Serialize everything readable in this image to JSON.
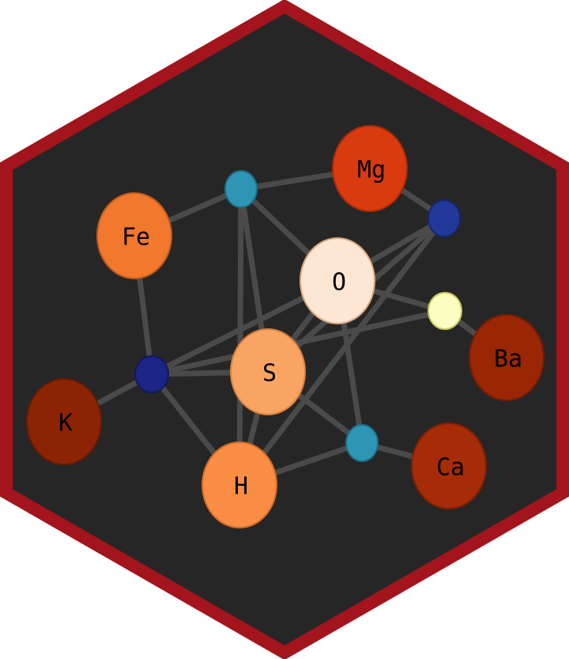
{
  "colors": {
    "background": "#ffffff",
    "hex_border": "#a3141c",
    "hex_fill": "#262626",
    "edge": "#4a4a4a"
  },
  "nodes": [
    {
      "id": "Fe",
      "label": "Fe",
      "fill": "#f2782e",
      "stroke": "#c45a1c"
    },
    {
      "id": "Mg",
      "label": "Mg",
      "fill": "#d93a0e",
      "stroke": "#a82a08"
    },
    {
      "id": "O",
      "label": "O",
      "fill": "#fde6d4",
      "stroke": "#d9a880"
    },
    {
      "id": "S",
      "label": "S",
      "fill": "#f9a462",
      "stroke": "#d9803e"
    },
    {
      "id": "H",
      "label": "H",
      "fill": "#fb8d44",
      "stroke": "#d36b24"
    },
    {
      "id": "K",
      "label": "K",
      "fill": "#8c2404",
      "stroke": "#6a1a02"
    },
    {
      "id": "Ba",
      "label": "Ba",
      "fill": "#9a2605",
      "stroke": "#751c03"
    },
    {
      "id": "Ca",
      "label": "Ca",
      "fill": "#a62b07",
      "stroke": "#7d1f04"
    },
    {
      "id": "teal1",
      "label": "",
      "fill": "#2e96b4",
      "stroke": "#1e6f88"
    },
    {
      "id": "teal2",
      "label": "",
      "fill": "#2e96b4",
      "stroke": "#1e6f88"
    },
    {
      "id": "navy1",
      "label": "",
      "fill": "#23399a",
      "stroke": "#162670"
    },
    {
      "id": "navy2",
      "label": "",
      "fill": "#1c2486",
      "stroke": "#111860"
    },
    {
      "id": "yellow1",
      "label": "",
      "fill": "#fdffc2",
      "stroke": "#c8c860"
    }
  ],
  "edges": [
    [
      "Fe",
      "teal1"
    ],
    [
      "teal1",
      "Mg"
    ],
    [
      "Mg",
      "navy1"
    ],
    [
      "teal1",
      "O"
    ],
    [
      "teal1",
      "S"
    ],
    [
      "teal1",
      "H"
    ],
    [
      "Fe",
      "navy2"
    ],
    [
      "K",
      "navy2"
    ],
    [
      "navy2",
      "O"
    ],
    [
      "navy2",
      "S"
    ],
    [
      "navy2",
      "H"
    ],
    [
      "navy2",
      "yellow1"
    ],
    [
      "O",
      "navy1"
    ],
    [
      "O",
      "yellow1"
    ],
    [
      "O",
      "S"
    ],
    [
      "O",
      "teal2"
    ],
    [
      "S",
      "navy1"
    ],
    [
      "S",
      "teal2"
    ],
    [
      "H",
      "navy1"
    ],
    [
      "H",
      "teal2"
    ],
    [
      "teal2",
      "Ca"
    ],
    [
      "yellow1",
      "Ba"
    ],
    [
      "S",
      "H"
    ]
  ]
}
